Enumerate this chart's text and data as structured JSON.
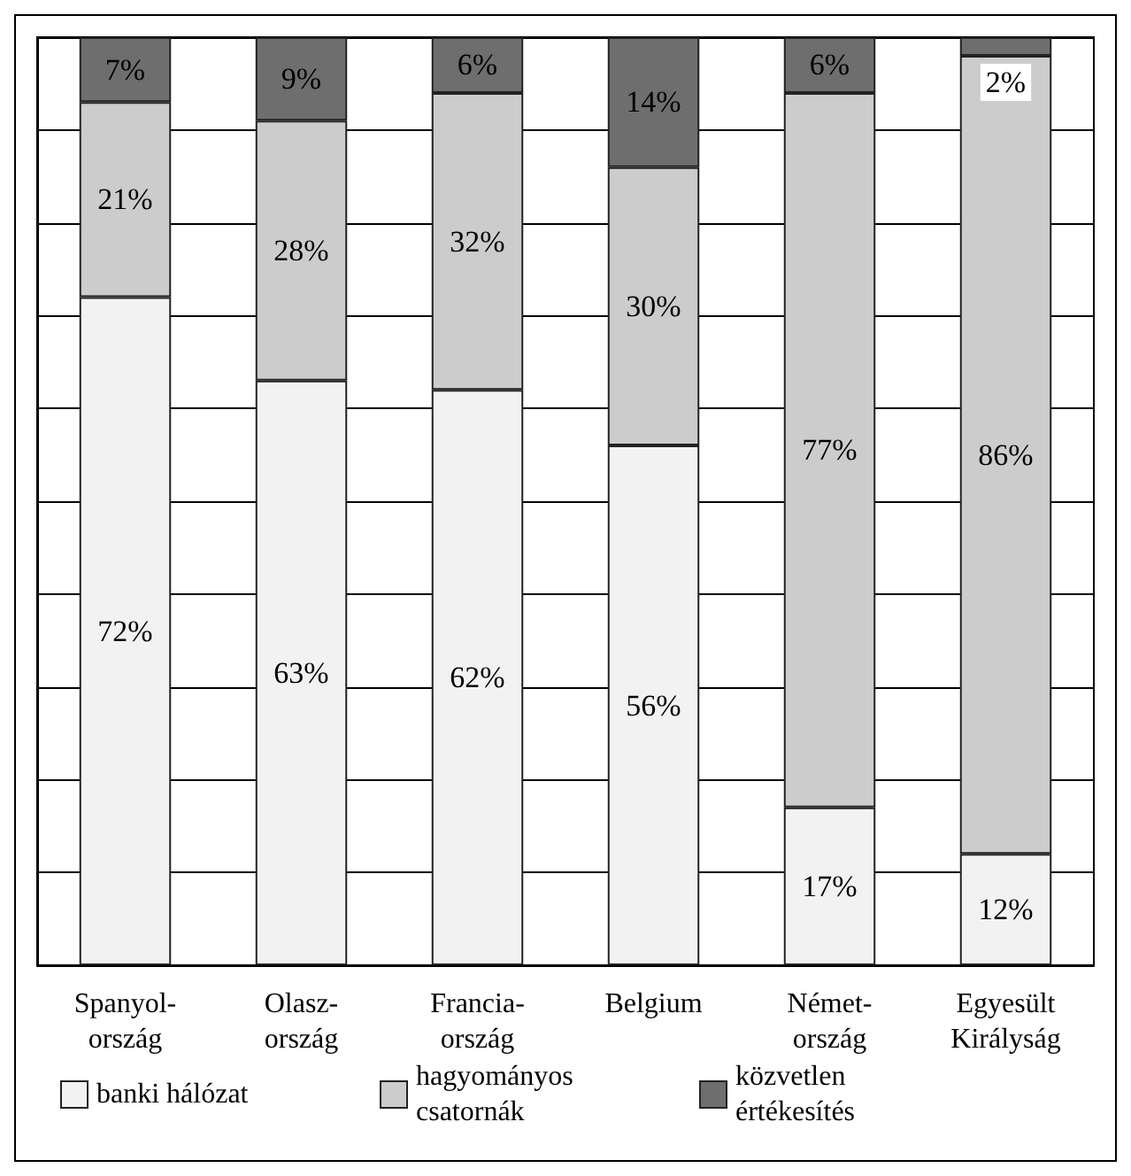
{
  "chart_data": {
    "type": "bar",
    "stacked": true,
    "categories": [
      "Spanyol-\nország",
      "Olasz-\nország",
      "Francia-\nország",
      "Belgium",
      "Német-\nország",
      "Egyesült\nKirályság"
    ],
    "series": [
      {
        "name": "banki hálózat",
        "color": "#f2f2f2",
        "values": [
          72,
          63,
          62,
          56,
          17,
          12
        ],
        "value_labels": [
          "72%",
          "63%",
          "62%",
          "56%",
          "17%",
          "12%"
        ]
      },
      {
        "name": "hagyományos csatornák",
        "color": "#cccccc",
        "values": [
          21,
          28,
          32,
          30,
          77,
          86
        ],
        "value_labels": [
          "21%",
          "28%",
          "32%",
          "30%",
          "77%",
          "86%"
        ]
      },
      {
        "name": "közvetlen értékesítés",
        "color": "#6e6e6e",
        "values": [
          7,
          9,
          6,
          14,
          6,
          2
        ],
        "value_labels": [
          "7%",
          "9%",
          "6%",
          "14%",
          "6%",
          "2%"
        ]
      }
    ],
    "grid": "y",
    "legend": "bottom"
  }
}
